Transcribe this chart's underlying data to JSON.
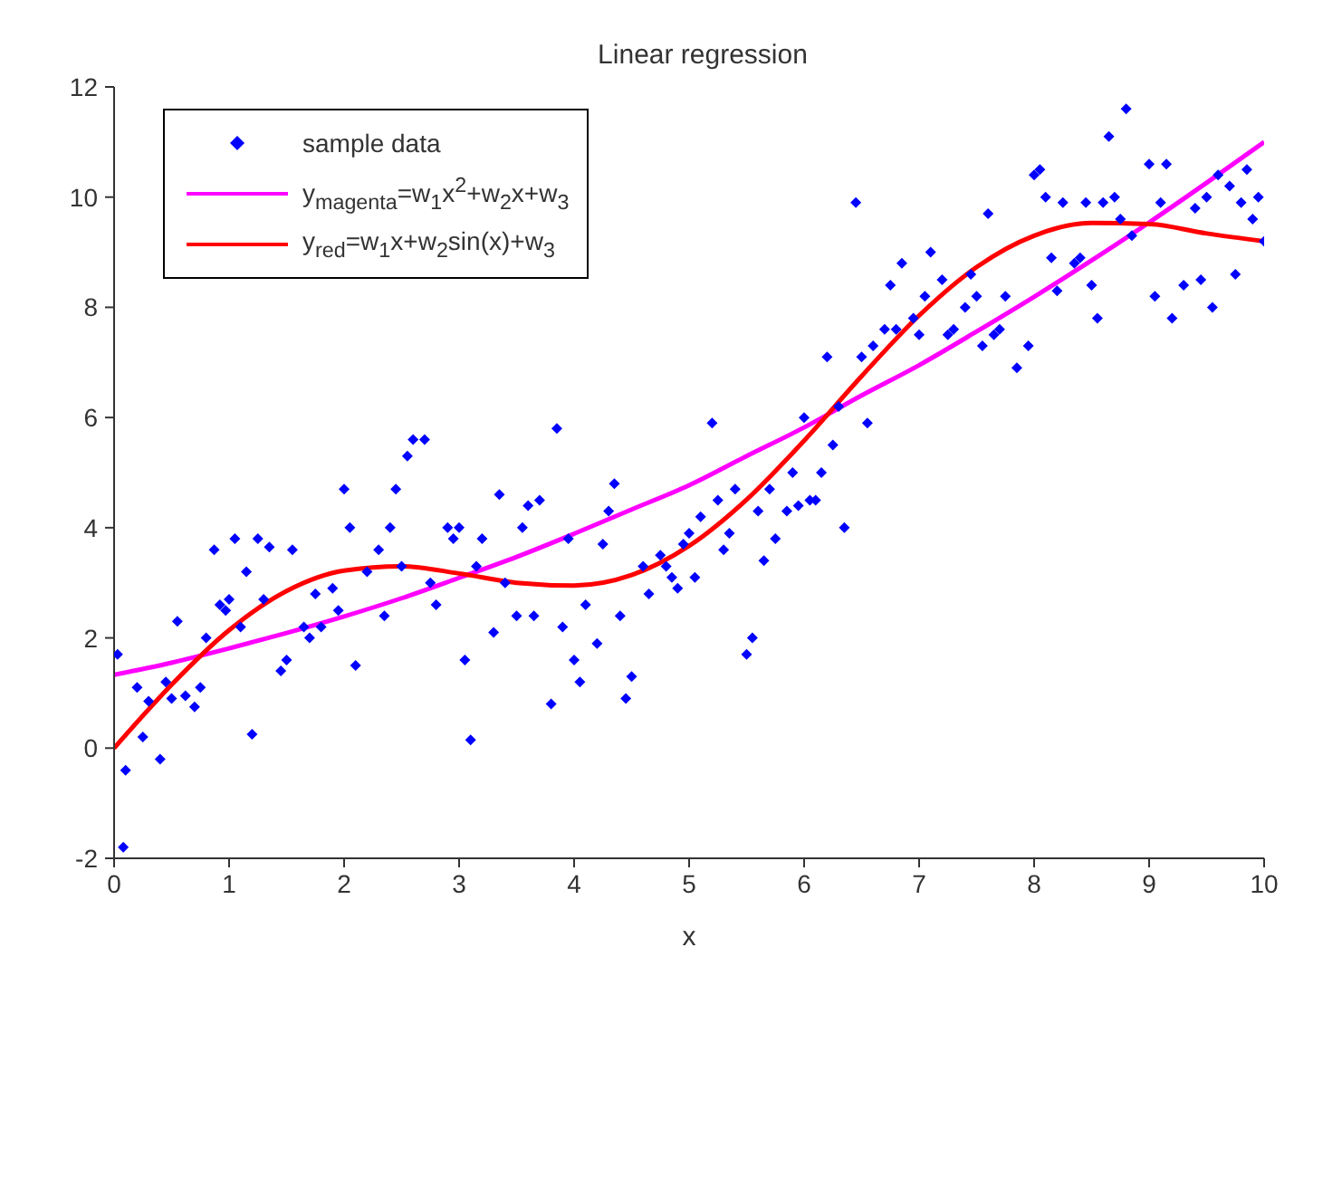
{
  "chart_data": {
    "type": "scatter",
    "title": "Linear regression",
    "xlabel": "x",
    "xlim": [
      0,
      10
    ],
    "xticks": [
      0,
      1,
      2,
      3,
      4,
      5,
      6,
      7,
      8,
      9,
      10
    ],
    "ylim": [
      -2,
      12
    ],
    "yticks": [
      -2,
      0,
      2,
      4,
      6,
      8,
      10,
      12
    ],
    "grid": false,
    "legend": "top left",
    "series": [
      {
        "name": "sample data",
        "color": "#0000ff",
        "marker": "diamond",
        "x": [
          0.03,
          0.1,
          0.08,
          0.2,
          0.25,
          0.3,
          0.4,
          0.45,
          0.5,
          0.55,
          0.62,
          0.7,
          0.75,
          0.8,
          0.87,
          0.92,
          0.97,
          1.0,
          1.05,
          1.1,
          1.15,
          1.2,
          1.25,
          1.3,
          1.35,
          1.45,
          1.5,
          1.55,
          1.65,
          1.7,
          1.75,
          1.8,
          1.9,
          1.95,
          2.0,
          2.05,
          2.1,
          2.2,
          2.3,
          2.35,
          2.4,
          2.45,
          2.5,
          2.55,
          2.6,
          2.7,
          2.75,
          2.8,
          2.9,
          2.95,
          3.0,
          3.05,
          3.1,
          3.15,
          3.2,
          3.3,
          3.35,
          3.4,
          3.5,
          3.55,
          3.6,
          3.65,
          3.7,
          3.8,
          3.85,
          3.9,
          3.95,
          4.0,
          4.05,
          4.1,
          4.2,
          4.25,
          4.3,
          4.35,
          4.4,
          4.45,
          4.5,
          4.6,
          4.65,
          4.75,
          4.8,
          4.85,
          4.9,
          4.95,
          5.0,
          5.05,
          5.1,
          5.2,
          5.25,
          5.3,
          5.35,
          5.4,
          5.5,
          5.55,
          5.6,
          5.65,
          5.7,
          5.75,
          5.85,
          5.9,
          5.95,
          6.0,
          6.05,
          6.1,
          6.15,
          6.2,
          6.25,
          6.3,
          6.35,
          6.45,
          6.5,
          6.55,
          6.6,
          6.7,
          6.75,
          6.8,
          6.85,
          6.95,
          7.0,
          7.05,
          7.1,
          7.2,
          7.25,
          7.3,
          7.4,
          7.45,
          7.5,
          7.55,
          7.6,
          7.65,
          7.7,
          7.75,
          7.85,
          7.95,
          8.0,
          8.05,
          8.1,
          8.15,
          8.2,
          8.25,
          8.35,
          8.4,
          8.45,
          8.5,
          8.55,
          8.6,
          8.65,
          8.7,
          8.75,
          8.8,
          8.85,
          9.0,
          9.05,
          9.1,
          9.15,
          9.2,
          9.3,
          9.4,
          9.45,
          9.5,
          9.55,
          9.6,
          9.7,
          9.75,
          9.8,
          9.85,
          9.9,
          9.95,
          10.0
        ],
        "values": [
          1.7,
          -0.4,
          -1.8,
          1.1,
          0.2,
          0.85,
          -0.2,
          1.2,
          0.9,
          2.3,
          0.95,
          0.75,
          1.1,
          2.0,
          3.6,
          2.6,
          2.5,
          2.7,
          3.8,
          2.2,
          3.2,
          0.25,
          3.8,
          2.7,
          3.65,
          1.4,
          1.6,
          3.6,
          2.2,
          2.0,
          2.8,
          2.2,
          2.9,
          2.5,
          4.7,
          4.0,
          1.5,
          3.2,
          3.6,
          2.4,
          4.0,
          4.7,
          3.3,
          5.3,
          5.6,
          5.6,
          3.0,
          2.6,
          4.0,
          3.8,
          4.0,
          1.6,
          0.15,
          3.3,
          3.8,
          2.1,
          4.6,
          3.0,
          2.4,
          4.0,
          4.4,
          2.4,
          4.5,
          0.8,
          5.8,
          2.2,
          3.8,
          1.6,
          1.2,
          2.6,
          1.9,
          3.7,
          4.3,
          4.8,
          2.4,
          0.9,
          1.3,
          3.3,
          2.8,
          3.5,
          3.3,
          3.1,
          2.9,
          3.7,
          3.9,
          3.1,
          4.2,
          5.9,
          4.5,
          3.6,
          3.9,
          4.7,
          1.7,
          2.0,
          4.3,
          3.4,
          4.7,
          3.8,
          4.3,
          5.0,
          4.4,
          6.0,
          4.5,
          4.5,
          5.0,
          7.1,
          5.5,
          6.2,
          4.0,
          9.9,
          7.1,
          5.9,
          7.3,
          7.6,
          8.4,
          7.6,
          8.8,
          7.8,
          7.5,
          8.2,
          9.0,
          8.5,
          7.5,
          7.6,
          8.0,
          8.6,
          8.2,
          7.3,
          9.7,
          7.5,
          7.6,
          8.2,
          6.9,
          7.3,
          10.4,
          10.5,
          10.0,
          8.9,
          8.3,
          9.9,
          8.8,
          8.9,
          9.9,
          8.4,
          7.8,
          9.9,
          11.1,
          10.0,
          9.6,
          11.6,
          9.3,
          10.6,
          8.2,
          9.9,
          10.6,
          7.8,
          8.4,
          9.8,
          8.5,
          10.0,
          8.0,
          10.4,
          10.2,
          8.6,
          9.9,
          10.5,
          9.6,
          10.0,
          9.2
        ]
      },
      {
        "name": "y$_{magenta}$=w$_{1}$x$^{2}$+w$_{2}$x+w$_{3}$",
        "type": "line",
        "color": "#ff00ff",
        "marker": "none",
        "line_style": "solid",
        "x": [
          0,
          0.5,
          1,
          1.5,
          2,
          2.5,
          3,
          3.5,
          4,
          4.5,
          5,
          5.5,
          6,
          6.5,
          7,
          7.5,
          8,
          8.5,
          9,
          9.5,
          10
        ],
        "values": [
          1.33,
          1.55,
          1.81,
          2.09,
          2.39,
          2.72,
          3.09,
          3.47,
          3.89,
          4.33,
          4.77,
          5.3,
          5.82,
          6.4,
          6.95,
          7.56,
          8.19,
          8.85,
          9.54,
          10.26,
          11.0
        ]
      },
      {
        "name": "y$_{red}$=w$_{1}$x+w$_{2}$sin(x)+w$_{3}$",
        "type": "line",
        "color": "#ff0000",
        "marker": "none",
        "line_style": "solid",
        "x": [
          0,
          0.5,
          1,
          1.5,
          2,
          2.5,
          3,
          3.5,
          4,
          4.5,
          5,
          5.5,
          6,
          6.5,
          7,
          7.5,
          8,
          8.5,
          9,
          9.5,
          10
        ],
        "values": [
          0,
          1.15,
          2.14,
          2.85,
          3.22,
          3.3,
          3.17,
          3.0,
          2.95,
          3.14,
          3.67,
          4.51,
          5.58,
          6.75,
          7.85,
          8.73,
          9.3,
          9.53,
          9.51,
          9.34,
          9.2
        ]
      }
    ]
  }
}
